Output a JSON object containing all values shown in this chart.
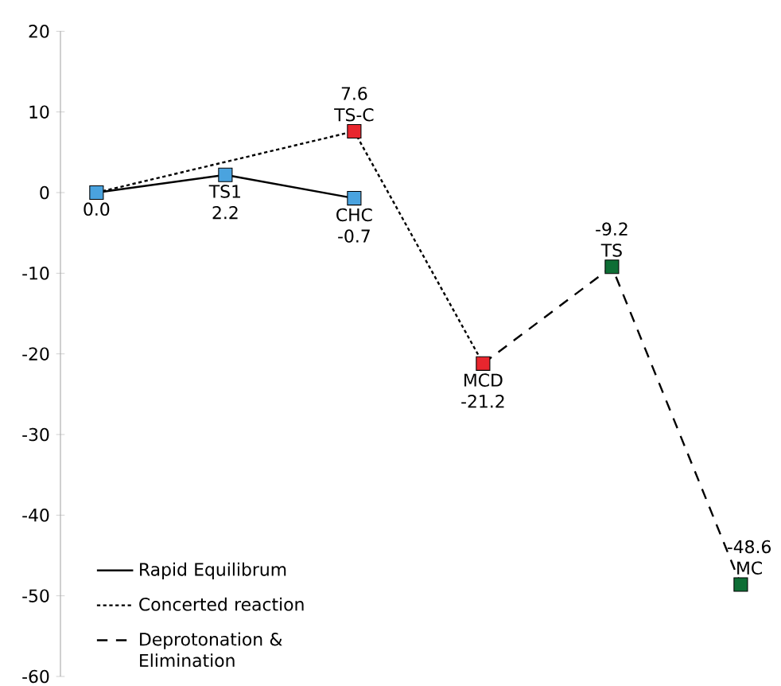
{
  "chart_data": {
    "type": "line",
    "categories": [
      null,
      null,
      null,
      null,
      null,
      null
    ],
    "ylim": [
      -60,
      20
    ],
    "yticks": [
      -60,
      -50,
      -40,
      -30,
      -20,
      -10,
      0,
      10,
      20
    ],
    "tick_labels": "y",
    "legend": "bottom left",
    "series": [
      {
        "name": "Rapid Equilibrum",
        "line_style": "solid",
        "color": "#000000",
        "values": [
          0.0,
          2.2,
          -0.7,
          null,
          null,
          null
        ]
      },
      {
        "name": "Concerted reaction",
        "line_style": "dotted",
        "color": "#000000",
        "values": [
          0.0,
          null,
          7.6,
          -21.2,
          null,
          null
        ]
      },
      {
        "name": "Deprotonation & Elimination",
        "line_style": "dashed",
        "color": "#000000",
        "values": [
          null,
          null,
          null,
          -21.2,
          -9.2,
          -48.6
        ]
      },
      {
        "type": "scatter",
        "marker": "square",
        "colors": [
          "#4aa3df",
          "#4aa3df",
          "#4aa3df",
          "#e8262e",
          "#0e6e35",
          "#0e6e35"
        ],
        "values": [
          0.0,
          2.2,
          -0.7,
          -21.2,
          -9.2,
          -48.6
        ],
        "value_labels": [
          "0.0",
          "2.2",
          "-0.7",
          "-21.2",
          "-9.2",
          "-48.6"
        ]
      },
      {
        "type": "scatter",
        "marker": "square",
        "color": "#e8262e",
        "values": [
          null,
          null,
          7.6,
          null,
          null,
          null
        ],
        "value_labels": [
          null,
          null,
          "7.6",
          null,
          null,
          null
        ]
      }
    ],
    "annotations": [
      {
        "text": "TS1",
        "y": 2.2
      },
      {
        "text": "CHC",
        "y": -0.7
      },
      {
        "text": "TS-C",
        "y": 7.6
      },
      {
        "text": "MCD",
        "y": -21.2
      },
      {
        "text": "TS",
        "y": -9.2
      },
      {
        "text": "MC",
        "y": -48.6
      }
    ]
  }
}
